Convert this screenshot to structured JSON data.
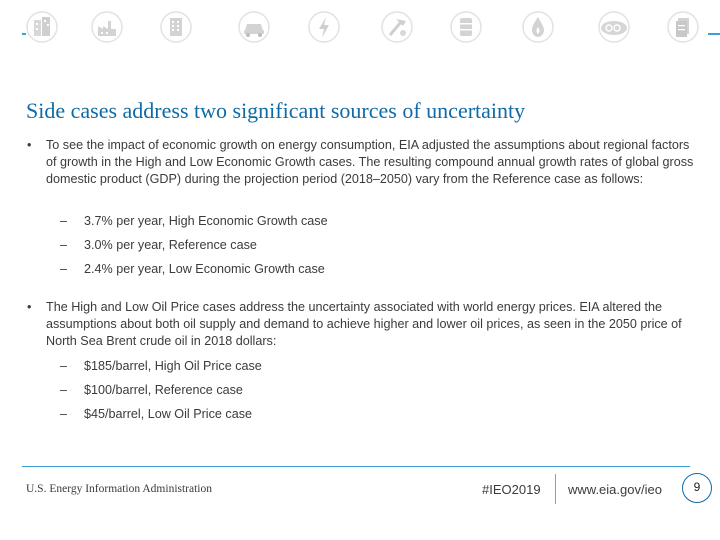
{
  "header": {
    "icons": [
      "buildings-icon",
      "factory-icon",
      "office-building-icon",
      "car-icon",
      "lightning-bolt-icon",
      "hammer-pick-icon",
      "oil-barrel-icon",
      "flame-icon",
      "co2-icon",
      "document-icon"
    ],
    "accent_color": "#3aa0d6"
  },
  "slide": {
    "title": "Side cases address two significant sources of uncertainty",
    "title_color": "#0f6aa6",
    "bullets": [
      {
        "text": "To see the impact of economic growth on energy consumption, EIA adjusted the assumptions about regional factors of growth in the High and Low Economic Growth cases. The resulting compound annual growth rates of global gross domestic product (GDP) during the projection period (2018–2050) vary from the Reference case as follows:",
        "subitems": [
          "3.7% per year, High Economic Growth case",
          "3.0% per year, Reference case",
          "2.4% per year, Low Economic Growth case"
        ]
      },
      {
        "text": "The High and Low Oil Price cases address the uncertainty associated with world energy prices. EIA altered the assumptions about both oil supply and demand to achieve higher and lower oil prices, as seen in the 2050 price of North Sea Brent crude oil in 2018 dollars:",
        "subitems": [
          "$185/barrel, High Oil Price case",
          "$100/barrel, Reference case",
          "$45/barrel, Low Oil Price case"
        ]
      }
    ]
  },
  "footer": {
    "org": "U.S. Energy Information Administration",
    "tag": "#IEO2019",
    "url": "www.eia.gov/ieo",
    "page": "9"
  }
}
